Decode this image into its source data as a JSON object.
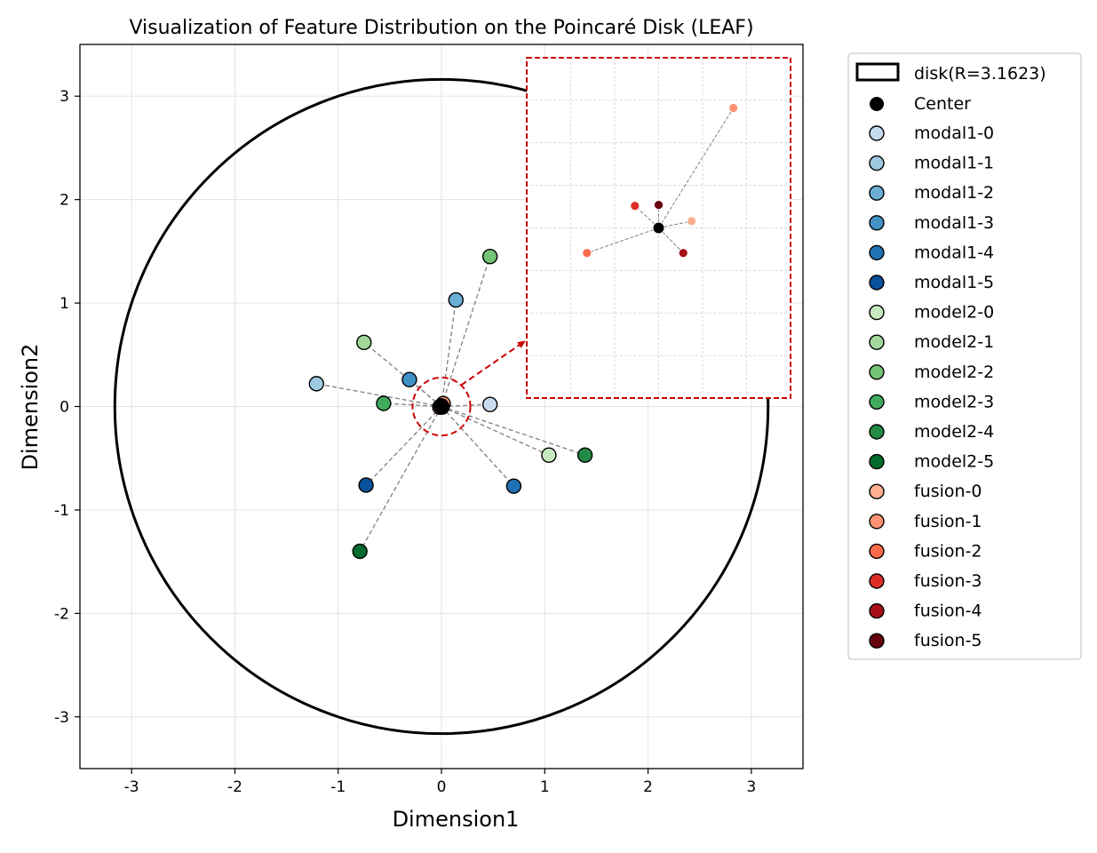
{
  "chart_data": {
    "type": "scatter",
    "title": "Visualization of Feature Distribution on the Poincaré Disk (LEAF)",
    "xlabel": "Dimension1",
    "ylabel": "Dimension2",
    "xlim": [
      -3.5,
      3.5
    ],
    "ylim": [
      -3.5,
      3.5
    ],
    "xticks": [
      -3,
      -2,
      -1,
      0,
      1,
      2,
      3
    ],
    "yticks": [
      -3,
      -2,
      -1,
      0,
      1,
      2,
      3
    ],
    "grid": true,
    "legend_position": "outside-right",
    "disk": {
      "label": "disk(R=3.1623)",
      "radius": 3.1623
    },
    "center": {
      "label": "Center",
      "x": 0,
      "y": 0,
      "color": "#000000"
    },
    "series": [
      {
        "name": "modal1-0",
        "x": 0.47,
        "y": 0.02,
        "color": "#c6dbef"
      },
      {
        "name": "modal1-1",
        "x": -1.21,
        "y": 0.22,
        "color": "#9ecae1"
      },
      {
        "name": "modal1-2",
        "x": 0.14,
        "y": 1.03,
        "color": "#6baed6"
      },
      {
        "name": "modal1-3",
        "x": -0.31,
        "y": 0.26,
        "color": "#4292c6"
      },
      {
        "name": "modal1-4",
        "x": 0.7,
        "y": -0.77,
        "color": "#2171b5"
      },
      {
        "name": "modal1-5",
        "x": -0.73,
        "y": -0.76,
        "color": "#08519c"
      },
      {
        "name": "model2-0",
        "x": 1.04,
        "y": -0.47,
        "color": "#c7e9c0"
      },
      {
        "name": "model2-1",
        "x": -0.75,
        "y": 0.62,
        "color": "#a1d99b"
      },
      {
        "name": "model2-2",
        "x": 0.47,
        "y": 1.45,
        "color": "#74c476"
      },
      {
        "name": "model2-3",
        "x": -0.56,
        "y": 0.03,
        "color": "#41ab5d"
      },
      {
        "name": "model2-4",
        "x": 1.39,
        "y": -0.47,
        "color": "#238b45"
      },
      {
        "name": "model2-5",
        "x": -0.79,
        "y": -1.4,
        "color": "#006d2c"
      },
      {
        "name": "fusion-0",
        "x": 0.0075,
        "y": 0.0016,
        "color": "#fcae91"
      },
      {
        "name": "fusion-1",
        "x": 0.017,
        "y": 0.0282,
        "color": "#fc9272"
      },
      {
        "name": "fusion-2",
        "x": -0.0163,
        "y": -0.0059,
        "color": "#fb6a4a"
      },
      {
        "name": "fusion-3",
        "x": -0.0054,
        "y": 0.0052,
        "color": "#de2d26"
      },
      {
        "name": "fusion-4",
        "x": 0.0056,
        "y": -0.0059,
        "color": "#a50f15"
      },
      {
        "name": "fusion-5",
        "x": 0.0,
        "y": 0.0054,
        "color": "#67000d"
      }
    ],
    "inset": {
      "xlim": [
        -0.03,
        0.03
      ],
      "ylim": [
        -0.04,
        0.04
      ],
      "grid": true,
      "frame_color": "#cc0000",
      "zoom_radius": 0.28
    }
  }
}
